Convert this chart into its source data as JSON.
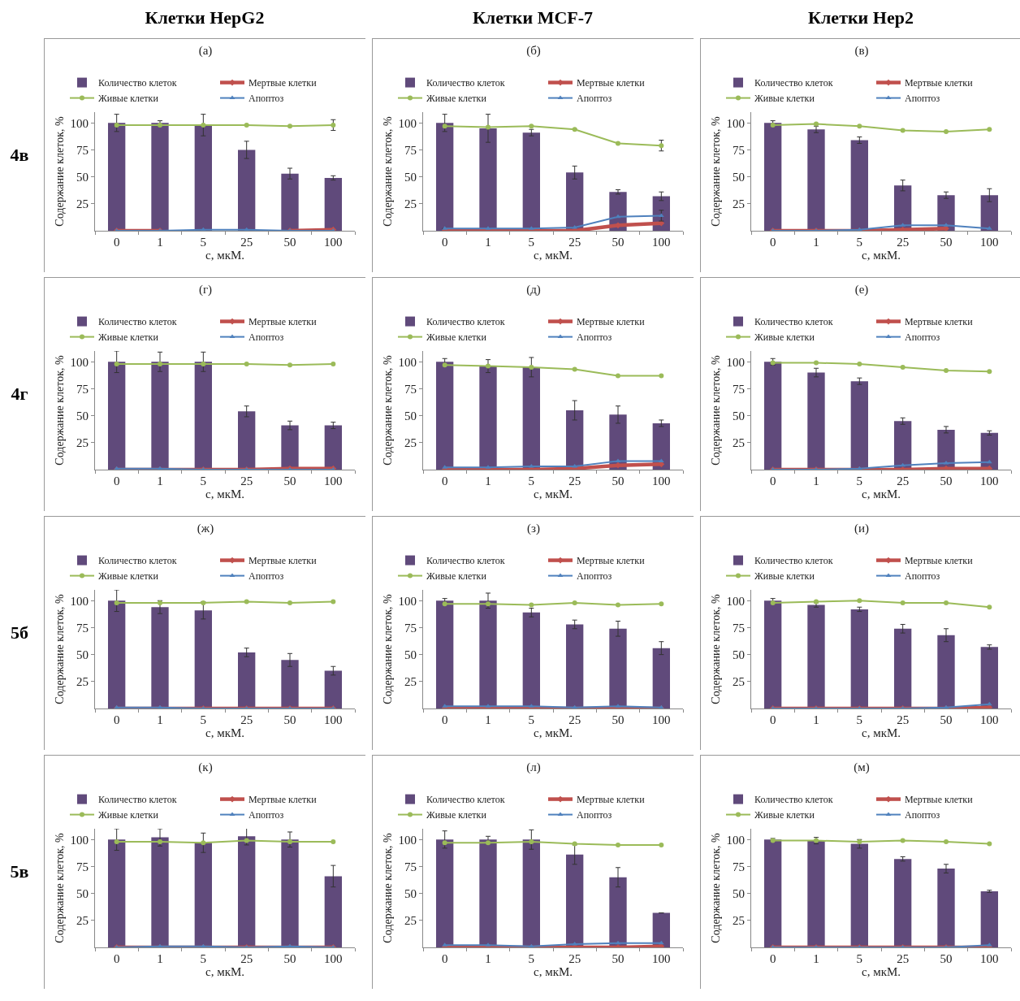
{
  "chart_data": [
    {
      "type": "bar",
      "title": "(а)",
      "annotations": [
        "Клетки HepG2",
        "4в"
      ],
      "xlabel": "c, мкМ.",
      "ylabel": "Содержание клеток, %",
      "categories": [
        "0",
        "1",
        "5",
        "25",
        "50",
        "100"
      ],
      "ylim": [
        0,
        110
      ],
      "yticks": [
        25,
        50,
        75,
        100
      ],
      "grid": false,
      "legend": "top",
      "series": [
        {
          "name": "Количество клеток",
          "color": "#604a7b",
          "values": [
            100,
            100,
            98,
            75,
            53,
            49
          ],
          "errors": [
            8,
            2,
            10,
            8,
            5,
            2
          ]
        },
        {
          "name": "Мертвые клетки",
          "type": "line",
          "marker": "diamond",
          "color": "#c0504d",
          "values": [
            0,
            0,
            null,
            null,
            0,
            1
          ]
        },
        {
          "name": "Живые клетки",
          "type": "line",
          "marker": "circle",
          "color": "#9bbb59",
          "values": [
            98,
            98,
            98,
            98,
            97,
            98
          ],
          "errors": [
            null,
            null,
            null,
            null,
            null,
            5
          ]
        },
        {
          "name": "Апоптоз",
          "type": "line",
          "marker": "triangle",
          "color": "#4f81bd",
          "values": [
            0,
            0,
            1,
            1,
            0,
            0
          ]
        }
      ]
    },
    {
      "type": "bar",
      "title": "(б)",
      "annotations": [
        "Клетки MCF-7"
      ],
      "xlabel": "c, мкМ.",
      "ylabel": "Содержание клеток, %",
      "categories": [
        "0",
        "1",
        "5",
        "25",
        "50",
        "100"
      ],
      "ylim": [
        0,
        110
      ],
      "yticks": [
        25,
        50,
        75,
        100
      ],
      "grid": false,
      "legend": "top",
      "series": [
        {
          "name": "Количество клеток",
          "color": "#604a7b",
          "values": [
            100,
            95,
            91,
            54,
            36,
            32
          ],
          "errors": [
            8,
            13,
            3,
            6,
            2,
            4
          ]
        },
        {
          "name": "Мертвые клетки",
          "type": "line",
          "marker": "diamond",
          "color": "#c0504d",
          "values": [
            0,
            0,
            0,
            0,
            5,
            7
          ]
        },
        {
          "name": "Живые клетки",
          "type": "line",
          "marker": "circle",
          "color": "#9bbb59",
          "values": [
            97,
            96,
            97,
            94,
            81,
            79
          ],
          "errors": [
            null,
            null,
            null,
            null,
            null,
            5
          ]
        },
        {
          "name": "Апоптоз",
          "type": "line",
          "marker": "triangle",
          "color": "#4f81bd",
          "values": [
            2,
            2,
            2,
            3,
            13,
            14
          ],
          "errors": [
            null,
            null,
            null,
            null,
            null,
            5
          ]
        }
      ]
    },
    {
      "type": "bar",
      "title": "(в)",
      "annotations": [
        "Клетки Hep2"
      ],
      "xlabel": "c, мкМ.",
      "ylabel": "Содержание клеток, %",
      "categories": [
        "0",
        "1",
        "5",
        "25",
        "50",
        "100"
      ],
      "ylim": [
        0,
        110
      ],
      "yticks": [
        25,
        50,
        75,
        100
      ],
      "grid": false,
      "legend": "top",
      "series": [
        {
          "name": "Количество клеток",
          "color": "#604a7b",
          "values": [
            100,
            94,
            84,
            42,
            33,
            33
          ],
          "errors": [
            2,
            3,
            3,
            5,
            3,
            6
          ]
        },
        {
          "name": "Мертвые клетки",
          "type": "line",
          "marker": "diamond",
          "color": "#c0504d",
          "values": [
            0,
            0,
            0,
            1,
            2,
            null
          ]
        },
        {
          "name": "Живые клетки",
          "type": "line",
          "marker": "circle",
          "color": "#9bbb59",
          "values": [
            98,
            99,
            97,
            93,
            92,
            94
          ]
        },
        {
          "name": "Апоптоз",
          "type": "line",
          "marker": "triangle",
          "color": "#4f81bd",
          "values": [
            0,
            0,
            1,
            5,
            5,
            2
          ]
        }
      ]
    },
    {
      "type": "bar",
      "title": "(г)",
      "annotations": [
        "4г"
      ],
      "xlabel": "c, мкМ.",
      "ylabel": "Содержание клеток, %",
      "categories": [
        "0",
        "1",
        "5",
        "25",
        "50",
        "100"
      ],
      "ylim": [
        0,
        110
      ],
      "yticks": [
        25,
        50,
        75,
        100
      ],
      "grid": false,
      "legend": "top",
      "series": [
        {
          "name": "Количество клеток",
          "color": "#604a7b",
          "values": [
            100,
            100,
            100,
            54,
            41,
            41
          ],
          "errors": [
            10,
            9,
            9,
            5,
            4,
            3
          ]
        },
        {
          "name": "Мертвые клетки",
          "type": "line",
          "marker": "diamond",
          "color": "#c0504d",
          "values": [
            0,
            0,
            0,
            0,
            1,
            1
          ]
        },
        {
          "name": "Живые клетки",
          "type": "line",
          "marker": "circle",
          "color": "#9bbb59",
          "values": [
            98,
            98,
            98,
            98,
            97,
            98
          ]
        },
        {
          "name": "Апоптоз",
          "type": "line",
          "marker": "triangle",
          "color": "#4f81bd",
          "values": [
            1,
            1,
            0,
            0,
            0,
            0
          ]
        }
      ]
    },
    {
      "type": "bar",
      "title": "(д)",
      "xlabel": "c, мкМ.",
      "ylabel": "Содержание клеток, %",
      "categories": [
        "0",
        "1",
        "5",
        "25",
        "50",
        "100"
      ],
      "ylim": [
        0,
        110
      ],
      "yticks": [
        25,
        50,
        75,
        100
      ],
      "grid": false,
      "legend": "top",
      "series": [
        {
          "name": "Количество клеток",
          "color": "#604a7b",
          "values": [
            100,
            96,
            95,
            55,
            51,
            43
          ],
          "errors": [
            3,
            6,
            9,
            9,
            8,
            3
          ]
        },
        {
          "name": "Мертвые клетки",
          "type": "line",
          "marker": "diamond",
          "color": "#c0504d",
          "values": [
            0,
            0,
            0,
            1,
            4,
            5
          ]
        },
        {
          "name": "Живые клетки",
          "type": "line",
          "marker": "circle",
          "color": "#9bbb59",
          "values": [
            97,
            96,
            95,
            93,
            87,
            87
          ]
        },
        {
          "name": "Апоптоз",
          "type": "line",
          "marker": "triangle",
          "color": "#4f81bd",
          "values": [
            2,
            2,
            3,
            3,
            8,
            8
          ]
        }
      ]
    },
    {
      "type": "bar",
      "title": "(е)",
      "xlabel": "c, мкМ.",
      "ylabel": "Содержание клеток, %",
      "categories": [
        "0",
        "1",
        "5",
        "25",
        "50",
        "100"
      ],
      "ylim": [
        0,
        110
      ],
      "yticks": [
        25,
        50,
        75,
        100
      ],
      "grid": false,
      "legend": "top",
      "series": [
        {
          "name": "Количество клеток",
          "color": "#604a7b",
          "values": [
            100,
            90,
            82,
            45,
            37,
            34
          ],
          "errors": [
            3,
            4,
            3,
            3,
            3,
            2
          ]
        },
        {
          "name": "Мертвые клетки",
          "type": "line",
          "marker": "diamond",
          "color": "#c0504d",
          "values": [
            0,
            0,
            0,
            0,
            1,
            1
          ]
        },
        {
          "name": "Живые клетки",
          "type": "line",
          "marker": "circle",
          "color": "#9bbb59",
          "values": [
            99,
            99,
            98,
            95,
            92,
            91
          ]
        },
        {
          "name": "Апоптоз",
          "type": "line",
          "marker": "triangle",
          "color": "#4f81bd",
          "values": [
            0,
            0,
            1,
            4,
            6,
            7
          ]
        }
      ]
    },
    {
      "type": "bar",
      "title": "(ж)",
      "annotations": [
        "5б"
      ],
      "xlabel": "c, мкМ.",
      "ylabel": "Содержание клеток, %",
      "categories": [
        "0",
        "1",
        "5",
        "25",
        "50",
        "100"
      ],
      "ylim": [
        0,
        110
      ],
      "yticks": [
        25,
        50,
        75,
        100
      ],
      "grid": false,
      "legend": "top",
      "series": [
        {
          "name": "Количество клеток",
          "color": "#604a7b",
          "values": [
            100,
            94,
            91,
            52,
            45,
            35
          ],
          "errors": [
            10,
            6,
            8,
            4,
            6,
            4
          ]
        },
        {
          "name": "Мертвые клетки",
          "type": "line",
          "marker": "diamond",
          "color": "#c0504d",
          "values": [
            0,
            0,
            0,
            0,
            0,
            0
          ]
        },
        {
          "name": "Живые клетки",
          "type": "line",
          "marker": "circle",
          "color": "#9bbb59",
          "values": [
            98,
            98,
            98,
            99,
            98,
            99
          ]
        },
        {
          "name": "Апоптоз",
          "type": "line",
          "marker": "triangle",
          "color": "#4f81bd",
          "values": [
            1,
            1,
            0,
            0,
            0,
            0
          ]
        }
      ]
    },
    {
      "type": "bar",
      "title": "(з)",
      "xlabel": "c, мкМ.",
      "ylabel": "Содержание клеток, %",
      "categories": [
        "0",
        "1",
        "5",
        "25",
        "50",
        "100"
      ],
      "ylim": [
        0,
        110
      ],
      "yticks": [
        25,
        50,
        75,
        100
      ],
      "grid": false,
      "legend": "top",
      "series": [
        {
          "name": "Количество клеток",
          "color": "#604a7b",
          "values": [
            100,
            100,
            89,
            78,
            74,
            56
          ],
          "errors": [
            2,
            7,
            4,
            4,
            7,
            6
          ]
        },
        {
          "name": "Мертвые клетки",
          "type": "line",
          "marker": "diamond",
          "color": "#c0504d",
          "values": [
            0,
            0,
            0,
            0,
            0,
            0
          ]
        },
        {
          "name": "Живые клетки",
          "type": "line",
          "marker": "circle",
          "color": "#9bbb59",
          "values": [
            97,
            97,
            96,
            98,
            96,
            97
          ]
        },
        {
          "name": "Апоптоз",
          "type": "line",
          "marker": "triangle",
          "color": "#4f81bd",
          "values": [
            2,
            2,
            2,
            1,
            2,
            1
          ]
        }
      ]
    },
    {
      "type": "bar",
      "title": "(и)",
      "xlabel": "c, мкМ.",
      "ylabel": "Содержание клеток, %",
      "categories": [
        "0",
        "1",
        "5",
        "25",
        "50",
        "100"
      ],
      "ylim": [
        0,
        110
      ],
      "yticks": [
        25,
        50,
        75,
        100
      ],
      "grid": false,
      "legend": "top",
      "series": [
        {
          "name": "Количество клеток",
          "color": "#604a7b",
          "values": [
            100,
            96,
            92,
            74,
            68,
            57
          ],
          "errors": [
            2,
            2,
            2,
            4,
            6,
            2
          ]
        },
        {
          "name": "Мертвые клетки",
          "type": "line",
          "marker": "diamond",
          "color": "#c0504d",
          "values": [
            0,
            0,
            0,
            0,
            0,
            1
          ]
        },
        {
          "name": "Живые клетки",
          "type": "line",
          "marker": "circle",
          "color": "#9bbb59",
          "values": [
            98,
            99,
            100,
            98,
            98,
            94
          ]
        },
        {
          "name": "Апоптоз",
          "type": "line",
          "marker": "triangle",
          "color": "#4f81bd",
          "values": [
            0,
            0,
            0,
            0,
            1,
            4
          ]
        }
      ]
    },
    {
      "type": "bar",
      "title": "(к)",
      "annotations": [
        "5в"
      ],
      "xlabel": "c, мкМ.",
      "ylabel": "Содержание клеток, %",
      "categories": [
        "0",
        "1",
        "5",
        "25",
        "50",
        "100"
      ],
      "ylim": [
        0,
        110
      ],
      "yticks": [
        25,
        50,
        75,
        100
      ],
      "grid": false,
      "legend": "top",
      "series": [
        {
          "name": "Количество клеток",
          "color": "#604a7b",
          "values": [
            100,
            102,
            97,
            103,
            100,
            66
          ],
          "errors": [
            10,
            8,
            9,
            8,
            7,
            10
          ]
        },
        {
          "name": "Мертвые клетки",
          "type": "line",
          "marker": "diamond",
          "color": "#c0504d",
          "values": [
            0,
            0,
            0,
            0,
            0,
            0
          ]
        },
        {
          "name": "Живые клетки",
          "type": "line",
          "marker": "circle",
          "color": "#9bbb59",
          "values": [
            98,
            98,
            97,
            99,
            98,
            98
          ]
        },
        {
          "name": "Апоптоз",
          "type": "line",
          "marker": "triangle",
          "color": "#4f81bd",
          "values": [
            0,
            1,
            1,
            0,
            1,
            0
          ]
        }
      ]
    },
    {
      "type": "bar",
      "title": "(л)",
      "xlabel": "c, мкМ.",
      "ylabel": "Содержание клеток, %",
      "categories": [
        "0",
        "1",
        "5",
        "25",
        "50",
        "100"
      ],
      "ylim": [
        0,
        110
      ],
      "yticks": [
        25,
        50,
        75,
        100
      ],
      "grid": false,
      "legend": "top",
      "series": [
        {
          "name": "Количество клеток",
          "color": "#604a7b",
          "values": [
            100,
            100,
            100,
            86,
            65,
            32
          ],
          "errors": [
            8,
            3,
            9,
            9,
            9,
            null
          ]
        },
        {
          "name": "Мертвые клетки",
          "type": "line",
          "marker": "diamond",
          "color": "#c0504d",
          "values": [
            0,
            0,
            0,
            0,
            0,
            1
          ]
        },
        {
          "name": "Живые клетки",
          "type": "line",
          "marker": "circle",
          "color": "#9bbb59",
          "values": [
            97,
            97,
            98,
            96,
            95,
            95
          ]
        },
        {
          "name": "Апоптоз",
          "type": "line",
          "marker": "triangle",
          "color": "#4f81bd",
          "values": [
            2,
            2,
            1,
            3,
            4,
            4
          ]
        }
      ]
    },
    {
      "type": "bar",
      "title": "(м)",
      "xlabel": "c, мкМ.",
      "ylabel": "Содержание клеток, %",
      "categories": [
        "0",
        "1",
        "5",
        "25",
        "50",
        "100"
      ],
      "ylim": [
        0,
        110
      ],
      "yticks": [
        25,
        50,
        75,
        100
      ],
      "grid": false,
      "legend": "top",
      "series": [
        {
          "name": "Количество клеток",
          "color": "#604a7b",
          "values": [
            100,
            99,
            96,
            82,
            73,
            52
          ],
          "errors": [
            1,
            3,
            4,
            2,
            4,
            1
          ]
        },
        {
          "name": "Мертвые клетки",
          "type": "line",
          "marker": "diamond",
          "color": "#c0504d",
          "values": [
            0,
            0,
            0,
            0,
            0,
            0
          ]
        },
        {
          "name": "Живые клетки",
          "type": "line",
          "marker": "circle",
          "color": "#9bbb59",
          "values": [
            99,
            99,
            98,
            99,
            98,
            96
          ]
        },
        {
          "name": "Апоптоз",
          "type": "line",
          "marker": "triangle",
          "color": "#4f81bd",
          "values": [
            0,
            0,
            0,
            0,
            0,
            2
          ]
        }
      ]
    }
  ]
}
